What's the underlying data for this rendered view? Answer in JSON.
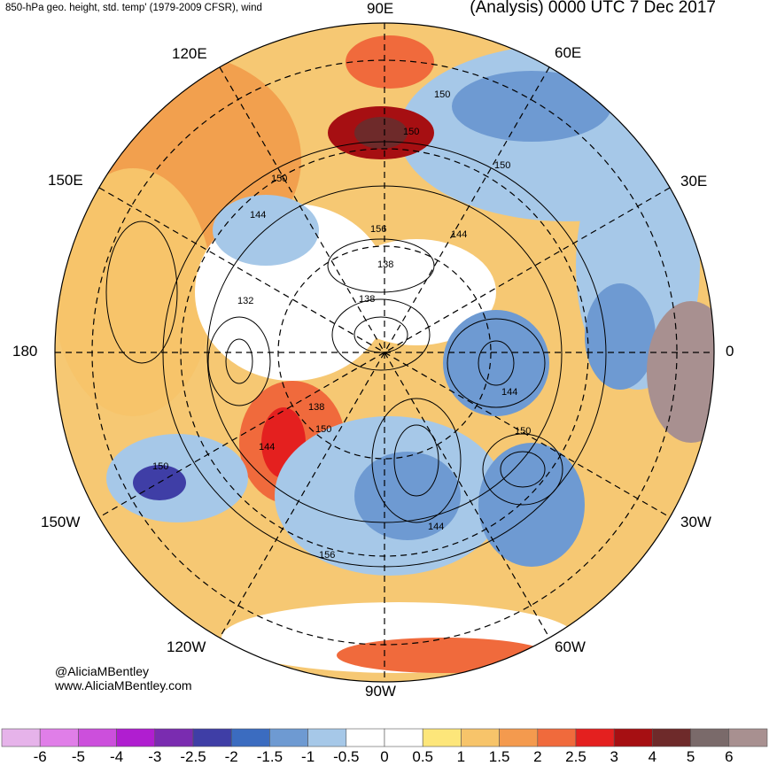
{
  "header": {
    "subtitle": "850-hPa geo. height, std. temp' (1979-2009 CFSR), wind",
    "title": "(Analysis) 0000 UTC 7 Dec 2017"
  },
  "map_labels": {
    "lon_90e": "90E",
    "lon_60e": "60E",
    "lon_120e": "120E",
    "lon_150e": "150E",
    "lon_30e": "30E",
    "lon_180": "180",
    "lon_0": "0",
    "lon_150w": "150W",
    "lon_30w": "30W",
    "lon_120w": "120W",
    "lon_60w": "60W",
    "lon_90w": "90W"
  },
  "contour_labels": [
    "150",
    "150",
    "150",
    "150",
    "144",
    "156",
    "144",
    "138",
    "132",
    "138",
    "138",
    "150",
    "144",
    "144",
    "150",
    "150",
    "156",
    "144"
  ],
  "credits": {
    "handle": "@AliciaMBentley",
    "website": "www.AliciaMBentley.com"
  },
  "colorbar": {
    "ticks": [
      "-6",
      "-5",
      "-4",
      "-3",
      "-2.5",
      "-2",
      "-1.5",
      "-1",
      "-0.5",
      "0",
      "0.5",
      "1",
      "1.5",
      "2",
      "2.5",
      "3",
      "4",
      "5",
      "6"
    ],
    "colors": [
      "#e6b3ea",
      "#e07ee8",
      "#cc4fdc",
      "#b01ed0",
      "#7a2cb0",
      "#3f3ea6",
      "#3b6cc0",
      "#6e9ad2",
      "#a6c8e8",
      "#ffffff",
      "#ffffff",
      "#fde67a",
      "#f7c46a",
      "#f49a4e",
      "#f06a3c",
      "#e4201f",
      "#a60f12",
      "#6e2a2a",
      "#7a6a6a",
      "#a89090"
    ]
  }
}
